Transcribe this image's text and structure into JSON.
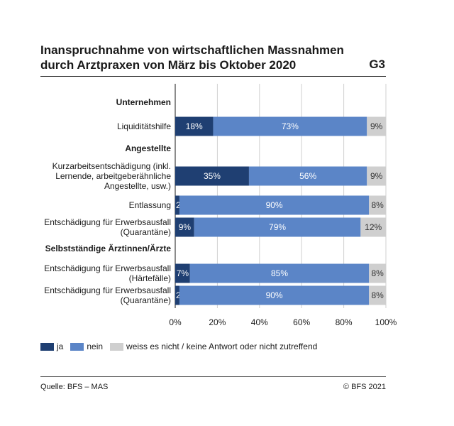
{
  "header": {
    "title": "Inanspruchnahme von wirtschaftlichen Massnahmen durch Arztpraxen von März bis Oktober 2020",
    "code": "G3"
  },
  "footer": {
    "source": "Quelle: BFS – MAS",
    "copyright": "© BFS 2021"
  },
  "colors": {
    "ja": "#1f3f72",
    "nein": "#5b85c7",
    "weiss": "#cfcfcf",
    "grid": "#d0d0d0"
  },
  "chart_data": {
    "type": "bar",
    "orientation": "horizontal",
    "stacked": true,
    "percent": true,
    "title": "Inanspruchnahme von wirtschaftlichen Massnahmen durch Arztpraxen von März bis Oktober 2020",
    "xlim": [
      0,
      100
    ],
    "xticks": [
      "0%",
      "20%",
      "40%",
      "60%",
      "80%",
      "100%"
    ],
    "grid": true,
    "legend_position": "bottom-left",
    "groups": [
      {
        "name": "Unternehmen",
        "categories": [
          {
            "label": [
              "Liquiditätshilfe"
            ],
            "values": [
              18,
              73,
              9
            ]
          }
        ]
      },
      {
        "name": "Angestellte",
        "categories": [
          {
            "label": [
              "Kurzarbeitsentschädigung (inkl.",
              "Lernende, arbeitgeberähnliche",
              "Angestellte, usw.)"
            ],
            "values": [
              35,
              56,
              9
            ]
          },
          {
            "label": [
              "Entlassung"
            ],
            "values": [
              2,
              90,
              8
            ]
          },
          {
            "label": [
              "Entschädigung für Erwerbsausfall",
              "(Quarantäne)"
            ],
            "values": [
              9,
              79,
              12
            ]
          }
        ]
      },
      {
        "name": "Selbstständige Ärztinnen/Ärzte",
        "categories": [
          {
            "label": [
              "Entschädigung für Erwerbsausfall",
              "(Härtefälle)"
            ],
            "values": [
              7,
              85,
              8
            ]
          },
          {
            "label": [
              "Entschädigung für Erwerbsausfall",
              "(Quarantäne)"
            ],
            "values": [
              2,
              90,
              8
            ]
          }
        ]
      }
    ],
    "series": [
      {
        "name": "ja"
      },
      {
        "name": "nein"
      },
      {
        "name": "weiss es nicht / keine Antwort oder nicht zutreffend"
      }
    ]
  }
}
